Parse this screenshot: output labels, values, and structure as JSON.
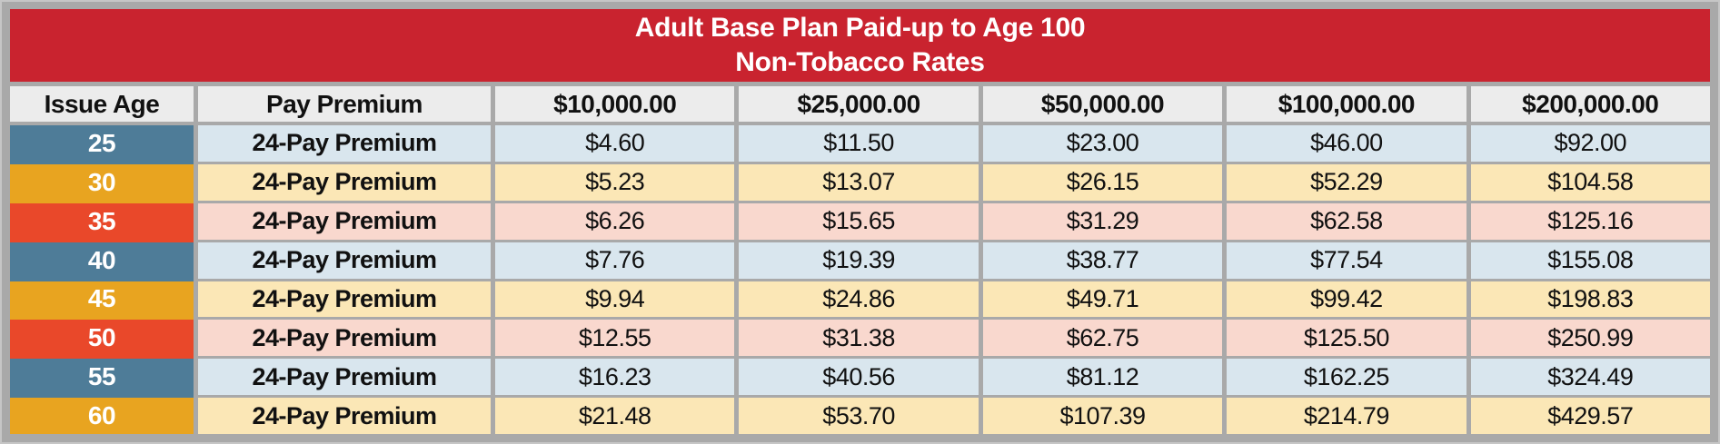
{
  "title": {
    "line1": "Adult Base Plan Paid-up to Age 100",
    "line2": "Non-Tobacco Rates"
  },
  "colors": {
    "banner_bg": "#c9232f",
    "banner_text": "#ffffff",
    "header_bg": "#ececec",
    "grid_gray": "#a9a9a9",
    "age_blue": "#4e7c98",
    "age_gold": "#e8a420",
    "age_orange_red": "#e9482a",
    "row_light_blue": "#d9e6ee",
    "row_cream": "#fbe7b6",
    "row_pink": "#f9d8ce"
  },
  "table": {
    "columns": [
      "Issue Age",
      "Pay Premium",
      "$10,000.00",
      "$25,000.00",
      "$50,000.00",
      "$100,000.00",
      "$200,000.00"
    ],
    "rows": [
      {
        "age": "25",
        "premium_label": "24-Pay Premium",
        "values": [
          "$4.60",
          "$11.50",
          "$23.00",
          "$46.00",
          "$92.00"
        ],
        "age_bg": "#4e7c98",
        "row_bg": "#d9e6ee"
      },
      {
        "age": "30",
        "premium_label": "24-Pay Premium",
        "values": [
          "$5.23",
          "$13.07",
          "$26.15",
          "$52.29",
          "$104.58"
        ],
        "age_bg": "#e8a420",
        "row_bg": "#fbe7b6"
      },
      {
        "age": "35",
        "premium_label": "24-Pay Premium",
        "values": [
          "$6.26",
          "$15.65",
          "$31.29",
          "$62.58",
          "$125.16"
        ],
        "age_bg": "#e9482a",
        "row_bg": "#f9d8ce"
      },
      {
        "age": "40",
        "premium_label": "24-Pay Premium",
        "values": [
          "$7.76",
          "$19.39",
          "$38.77",
          "$77.54",
          "$155.08"
        ],
        "age_bg": "#4e7c98",
        "row_bg": "#d9e6ee"
      },
      {
        "age": "45",
        "premium_label": "24-Pay Premium",
        "values": [
          "$9.94",
          "$24.86",
          "$49.71",
          "$99.42",
          "$198.83"
        ],
        "age_bg": "#e8a420",
        "row_bg": "#fbe7b6"
      },
      {
        "age": "50",
        "premium_label": "24-Pay Premium",
        "values": [
          "$12.55",
          "$31.38",
          "$62.75",
          "$125.50",
          "$250.99"
        ],
        "age_bg": "#e9482a",
        "row_bg": "#f9d8ce"
      },
      {
        "age": "55",
        "premium_label": "24-Pay Premium",
        "values": [
          "$16.23",
          "$40.56",
          "$81.12",
          "$162.25",
          "$324.49"
        ],
        "age_bg": "#4e7c98",
        "row_bg": "#d9e6ee"
      },
      {
        "age": "60",
        "premium_label": "24-Pay Premium",
        "values": [
          "$21.48",
          "$53.70",
          "$107.39",
          "$214.79",
          "$429.57"
        ],
        "age_bg": "#e8a420",
        "row_bg": "#fbe7b6"
      }
    ]
  }
}
